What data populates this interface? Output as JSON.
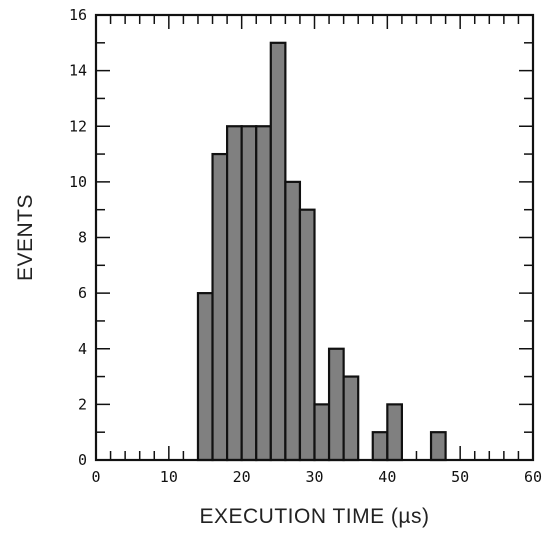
{
  "chart_data": {
    "type": "bar",
    "title": "",
    "xlabel": "EXECUTION TIME (µs)",
    "ylabel": "EVENTS",
    "xlim": [
      0,
      60
    ],
    "ylim": [
      0,
      16
    ],
    "x_ticks": [
      0,
      10,
      20,
      30,
      40,
      50,
      60
    ],
    "y_ticks": [
      0,
      2,
      4,
      6,
      8,
      10,
      12,
      14,
      16
    ],
    "grid": false,
    "bin_width": 2,
    "bins": [
      {
        "start": 14,
        "value": 6
      },
      {
        "start": 16,
        "value": 11
      },
      {
        "start": 18,
        "value": 12
      },
      {
        "start": 20,
        "value": 12
      },
      {
        "start": 22,
        "value": 12
      },
      {
        "start": 24,
        "value": 15
      },
      {
        "start": 26,
        "value": 10
      },
      {
        "start": 28,
        "value": 9
      },
      {
        "start": 30,
        "value": 2
      },
      {
        "start": 32,
        "value": 4
      },
      {
        "start": 34,
        "value": 3
      },
      {
        "start": 36,
        "value": 0
      },
      {
        "start": 38,
        "value": 1
      },
      {
        "start": 40,
        "value": 2
      },
      {
        "start": 42,
        "value": 0
      },
      {
        "start": 44,
        "value": 0
      },
      {
        "start": 46,
        "value": 1
      }
    ],
    "bar_color": "#808080",
    "edge_color": "#111111"
  }
}
